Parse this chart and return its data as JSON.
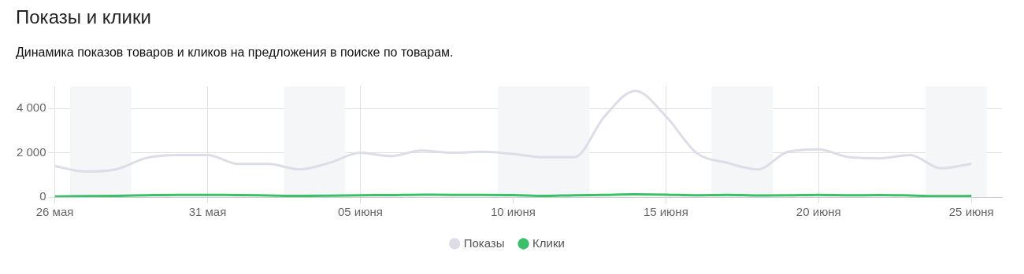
{
  "chart_data": {
    "type": "line",
    "title": "Показы и клики",
    "subtitle": "Динамика показов товаров и кликов на предложения в поиске по товарам.",
    "x": [
      "--05-26",
      "--05-27",
      "--05-28",
      "--05-29",
      "--05-30",
      "--05-31",
      "--06-01",
      "--06-02",
      "--06-03",
      "--06-04",
      "--06-05",
      "--06-06",
      "--06-07",
      "--06-08",
      "--06-09",
      "--06-10",
      "--06-11",
      "--06-12",
      "--06-13",
      "--06-14",
      "--06-15",
      "--06-16",
      "--06-17",
      "--06-18",
      "--06-19",
      "--06-20",
      "--06-21",
      "--06-22",
      "--06-23",
      "--06-24",
      "--06-25"
    ],
    "series": [
      {
        "name": "Показы",
        "color": "#dcdde6",
        "values": [
          1400,
          1150,
          1250,
          1770,
          1900,
          1900,
          1500,
          1500,
          1250,
          1550,
          2000,
          1850,
          2100,
          2000,
          2050,
          1950,
          1800,
          1800,
          3650,
          4800,
          3650,
          2000,
          1550,
          1250,
          2050,
          2150,
          1800,
          1750,
          1900,
          1300,
          1500
        ]
      },
      {
        "name": "Клики",
        "color": "#3bbf6a",
        "values": [
          30,
          40,
          50,
          80,
          100,
          100,
          90,
          70,
          50,
          60,
          80,
          90,
          110,
          100,
          100,
          90,
          50,
          80,
          100,
          120,
          110,
          80,
          100,
          70,
          80,
          100,
          80,
          90,
          70,
          40,
          50
        ]
      }
    ],
    "xlim": [
      "--05-26",
      "--06-26"
    ],
    "xticks": [
      {
        "value": "--05-26",
        "label": "26 мая"
      },
      {
        "value": "--05-31",
        "label": "31 мая"
      },
      {
        "value": "--06-05",
        "label": "05 июня"
      },
      {
        "value": "--06-10",
        "label": "10 июня"
      },
      {
        "value": "--06-15",
        "label": "15 июня"
      },
      {
        "value": "--06-20",
        "label": "20 июня"
      },
      {
        "value": "--06-25",
        "label": "25 июня"
      }
    ],
    "ylim": [
      0,
      5000
    ],
    "yticks": [
      0,
      {
        "value": 2000,
        "label": "2 000"
      },
      {
        "value": 4000,
        "label": "4 000"
      }
    ],
    "bands": [
      {
        "axis": "x",
        "from": "--05-26T12:00",
        "to": "--05-28T12:00",
        "color": "#f5f6f8"
      },
      {
        "axis": "x",
        "from": "--06-02T12:00",
        "to": "--06-04T12:00",
        "color": "#f5f6f8"
      },
      {
        "axis": "x",
        "from": "--06-09T12:00",
        "to": "--06-12T12:00",
        "color": "#f5f6f8"
      },
      {
        "axis": "x",
        "from": "--06-16T12:00",
        "to": "--06-18T12:00",
        "color": "#f5f6f8"
      },
      {
        "axis": "x",
        "from": "--06-23T12:00",
        "to": "--06-25T12:00",
        "color": "#f5f6f8"
      }
    ],
    "grid": true,
    "legend": "bottom",
    "marker": "none",
    "line_style": "solid"
  }
}
